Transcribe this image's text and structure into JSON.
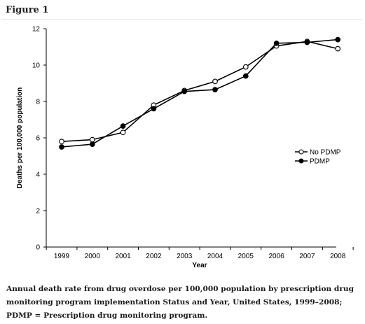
{
  "figure": {
    "label": "Figure 1",
    "caption": "Annual death rate from drug overdose per 100,000 population by prescription drug monitoring program implementation Status and Year, United States, 1999–2008; PDMP = Prescription drug monitoring program."
  },
  "chart_data": {
    "type": "line",
    "xlabel": "Year",
    "ylabel": "Deaths per 100,000 population",
    "x": [
      "1999",
      "2000",
      "2001",
      "2002",
      "2003",
      "2004",
      "2005",
      "2006",
      "2007",
      "2008"
    ],
    "ylim": [
      0,
      12
    ],
    "yticks": [
      0,
      2,
      4,
      6,
      8,
      10,
      12
    ],
    "grid": false,
    "legend_position": "right",
    "series": [
      {
        "name": "No PDMP",
        "marker": "open-circle",
        "color": "#000000",
        "values": [
          5.8,
          5.9,
          6.3,
          7.8,
          8.6,
          9.1,
          9.9,
          11.05,
          11.3,
          10.9
        ]
      },
      {
        "name": "PDMP",
        "marker": "filled-circle",
        "color": "#000000",
        "values": [
          5.5,
          5.65,
          6.65,
          7.6,
          8.55,
          8.65,
          9.4,
          11.2,
          11.25,
          11.4
        ]
      }
    ]
  }
}
